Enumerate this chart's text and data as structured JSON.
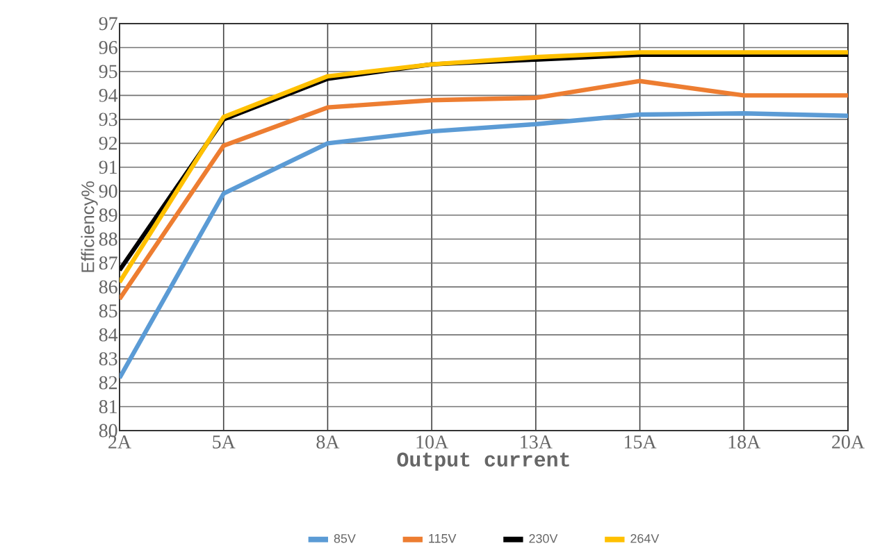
{
  "chart_data": {
    "type": "line",
    "xlabel": "Output current",
    "ylabel": "Efficiency%",
    "categories": [
      "2A",
      "5A",
      "8A",
      "10A",
      "13A",
      "15A",
      "18A",
      "20A"
    ],
    "series": [
      {
        "name": "85V",
        "color": "#5b9bd5",
        "values": [
          82.2,
          89.9,
          92.0,
          92.5,
          92.8,
          93.2,
          93.25,
          93.15
        ]
      },
      {
        "name": "115V",
        "color": "#ed7d31",
        "values": [
          85.5,
          91.9,
          93.5,
          93.8,
          93.9,
          94.6,
          94.0,
          94.0
        ]
      },
      {
        "name": "230V",
        "color": "#000000",
        "values": [
          86.7,
          93.0,
          94.7,
          95.3,
          95.5,
          95.7,
          95.7,
          95.7
        ]
      },
      {
        "name": "264V",
        "color": "#ffc000",
        "values": [
          86.2,
          93.1,
          94.8,
          95.3,
          95.6,
          95.8,
          95.8,
          95.8
        ]
      }
    ],
    "ylim": [
      80,
      97
    ],
    "yticks": [
      80,
      81,
      82,
      83,
      84,
      85,
      86,
      87,
      88,
      89,
      90,
      91,
      92,
      93,
      94,
      95,
      96,
      97
    ],
    "grid": true,
    "legend": "bottom",
    "marker": "none",
    "line_style": "solid"
  }
}
